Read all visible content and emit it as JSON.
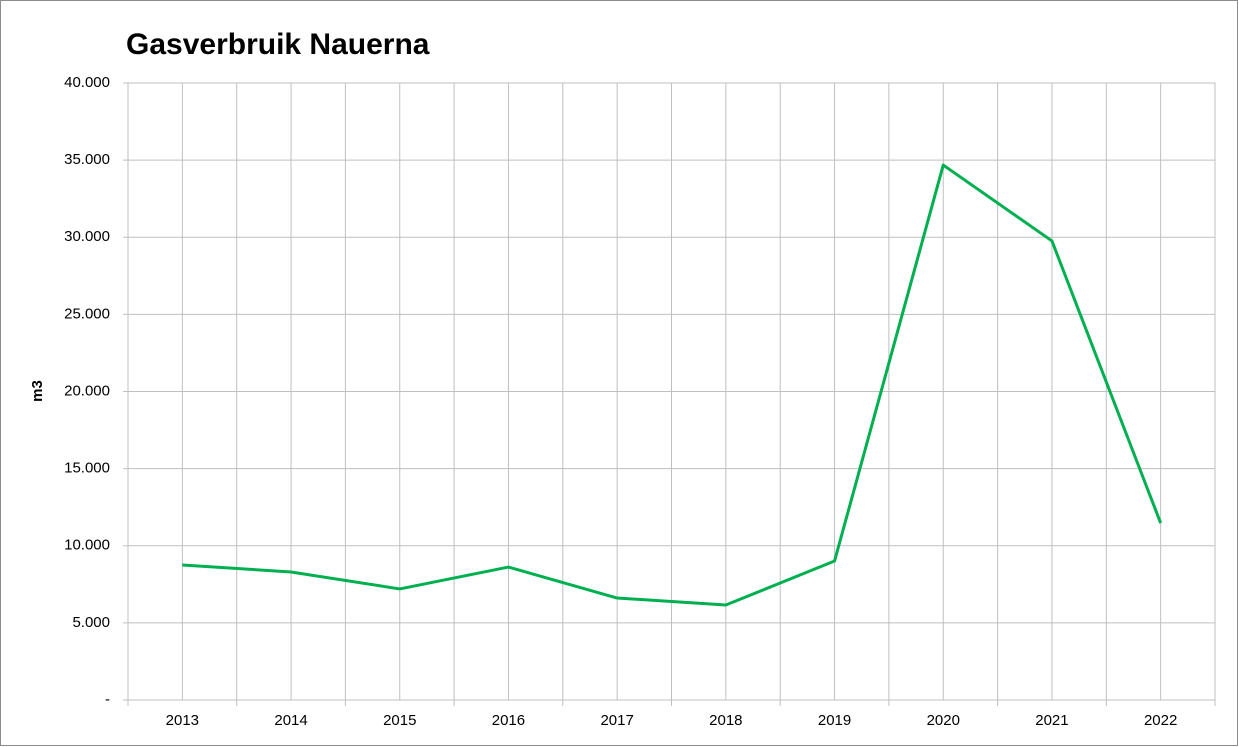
{
  "chart_data": {
    "type": "line",
    "title": "Gasverbruik Nauerna",
    "y_label": "m3",
    "categories": [
      "2013",
      "2014",
      "2015",
      "2016",
      "2017",
      "2018",
      "2019",
      "2020",
      "2021",
      "2022"
    ],
    "series": [
      {
        "name": "Gasverbruik",
        "color": "#00b050",
        "values": [
          8750,
          8300,
          7200,
          8620,
          6610,
          6160,
          9010,
          34680,
          29760,
          11470
        ]
      }
    ],
    "ylim": [
      0,
      40000
    ],
    "yticks": [
      {
        "value": 0,
        "label": "-"
      },
      {
        "value": 5000,
        "label": "5.000"
      },
      {
        "value": 10000,
        "label": "10.000"
      },
      {
        "value": 15000,
        "label": "15.000"
      },
      {
        "value": 20000,
        "label": "20.000"
      },
      {
        "value": 25000,
        "label": "25.000"
      },
      {
        "value": 30000,
        "label": "30.000"
      },
      {
        "value": 35000,
        "label": "35.000"
      },
      {
        "value": 40000,
        "label": "40.000"
      }
    ],
    "grid": true
  }
}
